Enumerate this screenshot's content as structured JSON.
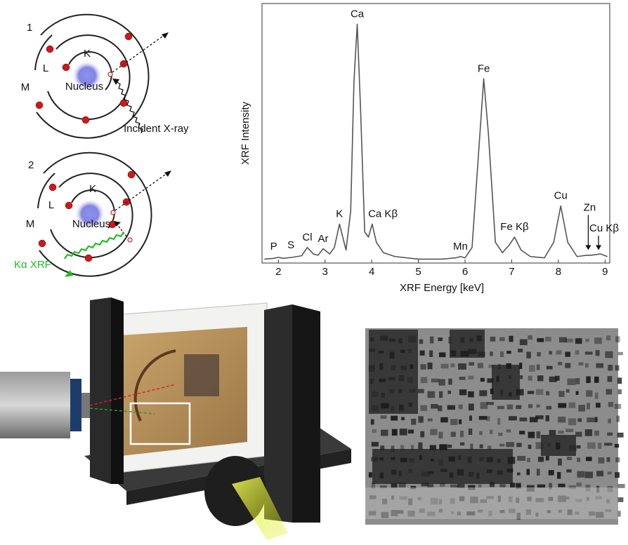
{
  "diagrams": [
    {
      "number": "1",
      "shells": [
        "K",
        "L",
        "M"
      ],
      "nucleus": "Nucleus",
      "caption": "Incident X-ray"
    },
    {
      "number": "2",
      "shells": [
        "K",
        "L",
        "M"
      ],
      "nucleus": "Nucleus",
      "caption": "Kα XRF"
    }
  ],
  "chart_data": {
    "type": "line",
    "x_label": "XRF Energy [keV]",
    "y_label": "XRF Intensity",
    "x": [
      1.7,
      1.9,
      2.0,
      2.1,
      2.3,
      2.5,
      2.62,
      2.75,
      2.85,
      2.96,
      3.1,
      3.2,
      3.31,
      3.45,
      3.55,
      3.62,
      3.69,
      3.76,
      3.85,
      3.93,
      4.01,
      4.1,
      4.25,
      4.5,
      5.0,
      5.5,
      5.8,
      5.9,
      6.0,
      6.15,
      6.3,
      6.4,
      6.5,
      6.65,
      6.8,
      6.95,
      7.06,
      7.2,
      7.4,
      7.7,
      7.9,
      8.05,
      8.2,
      8.4,
      8.6,
      8.7,
      8.9,
      9.05
    ],
    "values": [
      1.5,
      1.8,
      2.2,
      1.8,
      2.2,
      2.8,
      6,
      3.5,
      3,
      5.5,
      3.5,
      6,
      15,
      5,
      20,
      70,
      92,
      60,
      12,
      10,
      15,
      8,
      4,
      2.5,
      1.5,
      1.5,
      2,
      2.5,
      2,
      6,
      45,
      71,
      50,
      8,
      4,
      7,
      10,
      5,
      2.5,
      2,
      8,
      22,
      8,
      2.5,
      3,
      3,
      3.5,
      2.5
    ],
    "color": "#555555",
    "xlim": [
      1.65,
      9.1
    ],
    "ylim": [
      0,
      100
    ],
    "xticks": [
      2,
      3,
      4,
      5,
      6,
      7,
      8,
      9
    ],
    "annotations": [
      {
        "text": "P",
        "x": 1.9,
        "y": 3
      },
      {
        "text": "S",
        "x": 2.27,
        "y": 3.5
      },
      {
        "text": "Cl",
        "x": 2.62,
        "y": 6.5
      },
      {
        "text": "Ar",
        "x": 2.96,
        "y": 6
      },
      {
        "text": "K",
        "x": 3.31,
        "y": 15.5
      },
      {
        "text": "Ca",
        "x": 3.69,
        "y": 92.5
      },
      {
        "text": "Ca Kβ",
        "x": 4.24,
        "y": 15.5
      },
      {
        "text": "Mn",
        "x": 5.9,
        "y": 3
      },
      {
        "text": "Fe",
        "x": 6.4,
        "y": 71.5
      },
      {
        "text": "Fe Kβ",
        "x": 7.06,
        "y": 10.5
      },
      {
        "text": "Cu",
        "x": 8.05,
        "y": 22.5
      },
      {
        "text": "Zn",
        "x": 8.67,
        "y": 18,
        "arrow_x": 8.64,
        "arrow_y": 5
      },
      {
        "text": "Cu Kβ",
        "x": 8.98,
        "y": 10,
        "arrow_x": 8.86,
        "arrow_y": 5
      }
    ]
  }
}
